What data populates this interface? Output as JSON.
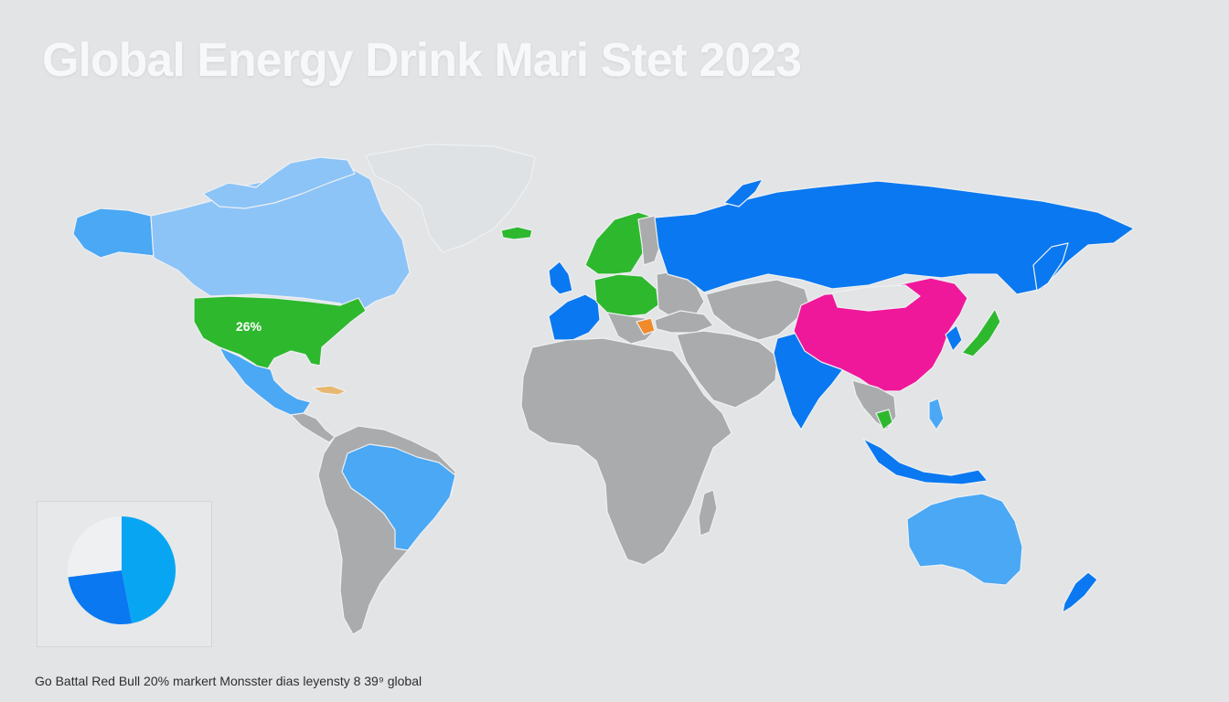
{
  "title": "Global Energy Drink Mari Stet 2023",
  "caption": "Go Battal Red Bull 20% markert Monsster dias leyensty 8 39⁹ global",
  "map": {
    "usa_label": "26%"
  },
  "colors": {
    "background": "#e2e4e6",
    "land_gray": "#a9abad",
    "light_blue": "#8cc4f8",
    "mid_blue": "#4aa8f5",
    "deep_blue": "#0a78f0",
    "green": "#2eb82e",
    "magenta": "#f0189a",
    "greenland": "#dfe2e5"
  },
  "inset_chart": {
    "type": "pie",
    "slices": [
      {
        "color": "#08a6f2",
        "fraction": 0.47
      },
      {
        "color": "#0a78f0",
        "fraction": 0.26
      },
      {
        "color": "#eef0f2",
        "fraction": 0.27
      }
    ]
  }
}
